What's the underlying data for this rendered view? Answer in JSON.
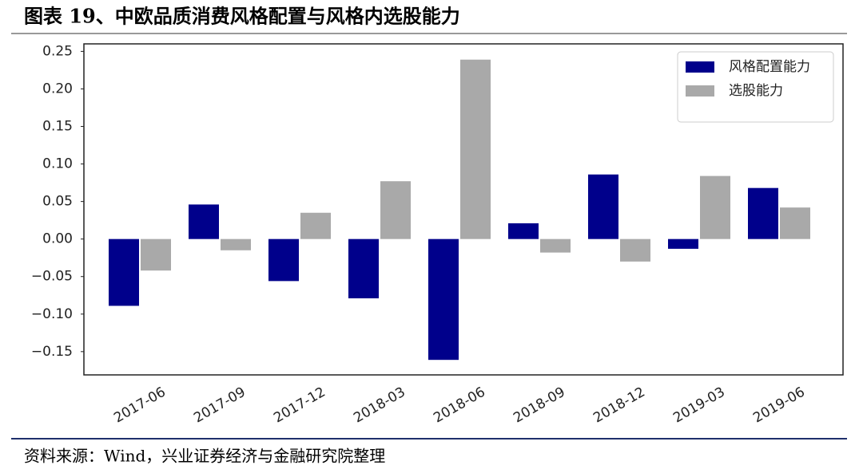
{
  "title": "图表 19、中欧品质消费风格配置与风格内选股能力",
  "source": "资料来源：Wind，兴业证券经济与金融研究院整理",
  "chart_data": {
    "type": "bar",
    "categories": [
      "2017-06",
      "2017-09",
      "2017-12",
      "2018-03",
      "2018-06",
      "2018-09",
      "2018-12",
      "2019-03",
      "2019-06"
    ],
    "series": [
      {
        "name": "风格配置能力",
        "color": "#00008b",
        "values": [
          -0.089,
          0.046,
          -0.056,
          -0.079,
          -0.161,
          0.021,
          0.086,
          -0.013,
          0.068
        ]
      },
      {
        "name": "选股能力",
        "color": "#a9a9a9",
        "values": [
          -0.042,
          -0.015,
          0.035,
          0.077,
          0.239,
          -0.018,
          -0.03,
          0.084,
          0.042
        ]
      }
    ],
    "ylim": [
      -0.181,
      0.26
    ],
    "yticks": [
      {
        "value": 0.25,
        "label": "0.25"
      },
      {
        "value": 0.2,
        "label": "0.20"
      },
      {
        "value": 0.15,
        "label": "0.15"
      },
      {
        "value": 0.1,
        "label": "0.10"
      },
      {
        "value": 0.05,
        "label": "0.05"
      },
      {
        "value": 0,
        "label": "0.00"
      },
      {
        "value": -0.05,
        "label": "−0.05"
      },
      {
        "value": -0.1,
        "label": "−0.10"
      },
      {
        "value": -0.15,
        "label": "−0.15"
      }
    ],
    "grid": false,
    "legend": "upper right"
  }
}
